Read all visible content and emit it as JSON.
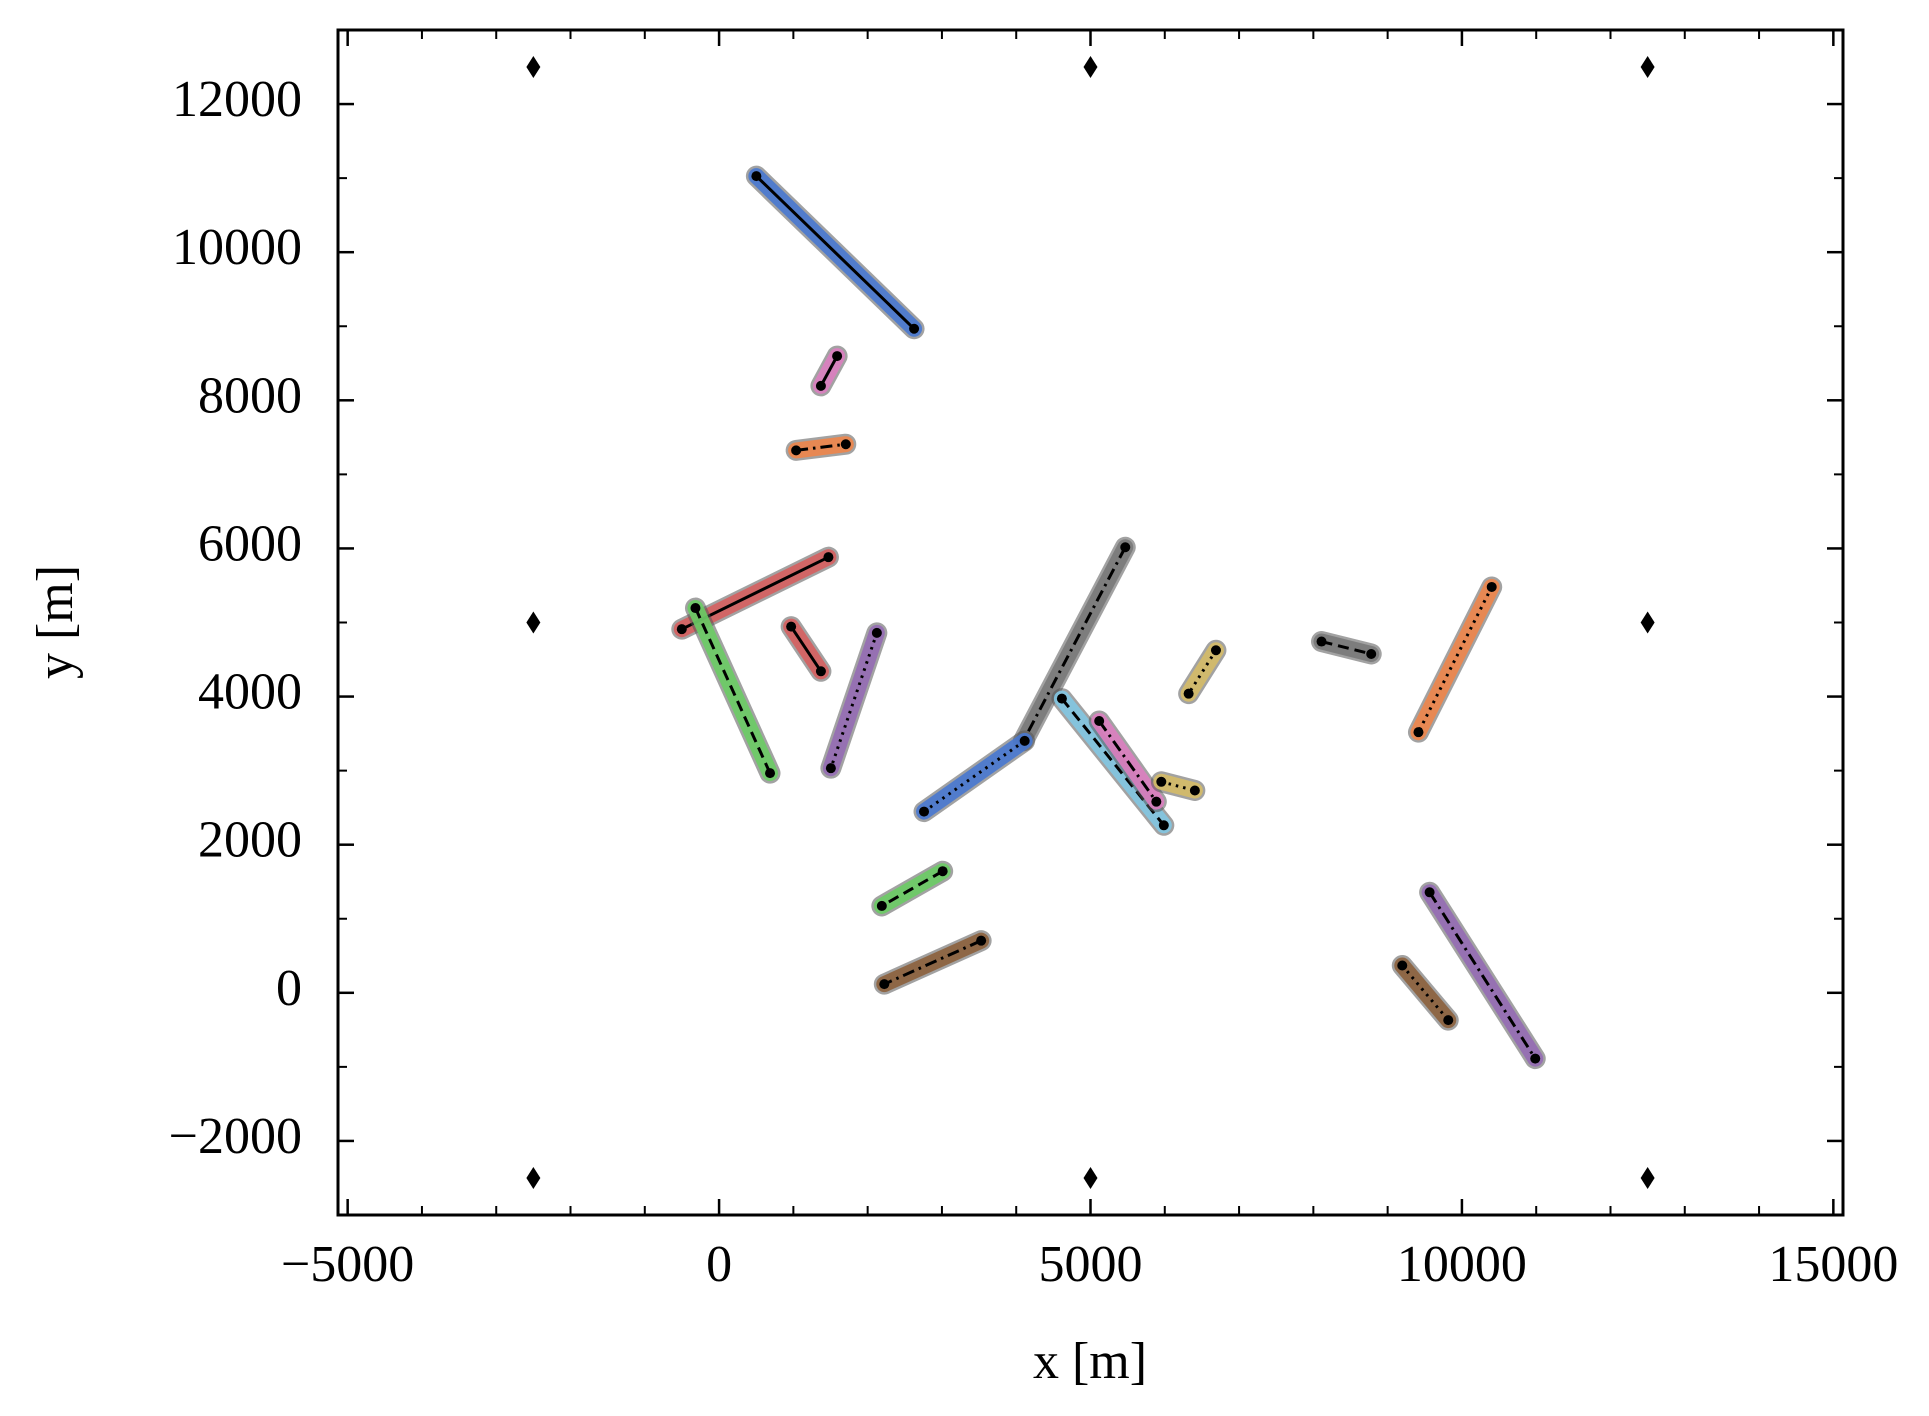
{
  "chart_data": {
    "type": "line",
    "xlabel": "x [m]",
    "ylabel": "y [m]",
    "xlim": [
      -5130,
      15130
    ],
    "ylim": [
      -3000,
      13000
    ],
    "xticks": [
      {
        "value": -5000,
        "label": "−5000"
      },
      0,
      5000,
      10000,
      15000
    ],
    "yticks": [
      {
        "value": -2000,
        "label": "−2000"
      },
      0,
      2000,
      4000,
      6000,
      8000,
      10000,
      12000
    ],
    "grid": false,
    "series": [
      {
        "color": "#4878d0",
        "linestyle": "solid",
        "x": [
          502,
          2625
        ],
        "y": [
          11027,
          8966
        ]
      },
      {
        "color": "#dc7ec0",
        "linestyle": "solid",
        "x": [
          1371,
          1589
        ],
        "y": [
          8195,
          8597
        ]
      },
      {
        "color": "#ee854a",
        "linestyle": "dashdot",
        "x": [
          1037,
          1706
        ],
        "y": [
          7324,
          7407
        ]
      },
      {
        "color": "#d65f5f",
        "linestyle": "solid",
        "x": [
          -502,
          1472
        ],
        "y": [
          4910,
          5882
        ]
      },
      {
        "color": "#6acc64",
        "linestyle": "dashed",
        "x": [
          -318,
          686
        ],
        "y": [
          5195,
          2966
        ]
      },
      {
        "color": "#d65f5f",
        "linestyle": "solid",
        "x": [
          970,
          1371
        ],
        "y": [
          4944,
          4341
        ]
      },
      {
        "color": "#956cb4",
        "linestyle": "dotted",
        "x": [
          2124,
          1505
        ],
        "y": [
          4860,
          3033
        ]
      },
      {
        "color": "#797979",
        "linestyle": "dashdot",
        "x": [
          5468,
          4097
        ],
        "y": [
          6016,
          3402
        ]
      },
      {
        "color": "#4878d0",
        "linestyle": "dotted",
        "x": [
          2759,
          4114
        ],
        "y": [
          2447,
          3402
        ]
      },
      {
        "color": "#82c6e2",
        "linestyle": "dashed",
        "x": [
          4615,
          5987
        ],
        "y": [
          3972,
          2262
        ]
      },
      {
        "color": "#dc7ec0",
        "linestyle": "dashdot",
        "x": [
          5117,
          5886
        ],
        "y": [
          3670,
          2581
        ]
      },
      {
        "color": "#d5bb67",
        "linestyle": "dotted",
        "x": [
          5953,
          6405
        ],
        "y": [
          2849,
          2732
        ]
      },
      {
        "color": "#d5bb67",
        "linestyle": "dotted",
        "x": [
          6689,
          6321
        ],
        "y": [
          4625,
          4039
        ]
      },
      {
        "color": "#797979",
        "linestyle": "dashed",
        "x": [
          8110,
          8779
        ],
        "y": [
          4743,
          4575
        ]
      },
      {
        "color": "#ee854a",
        "linestyle": "dotted",
        "x": [
          10401,
          9415
        ],
        "y": [
          5480,
          3519
        ]
      },
      {
        "color": "#6acc64",
        "linestyle": "dashed",
        "x": [
          3010,
          2191
        ],
        "y": [
          1642,
          1173
        ]
      },
      {
        "color": "#8c613c",
        "linestyle": "dashdot",
        "x": [
          3528,
          2224
        ],
        "y": [
          704,
          117
        ]
      },
      {
        "color": "#956cb4",
        "linestyle": "dashdot",
        "x": [
          9565,
          10987
        ],
        "y": [
          1357,
          -888
        ]
      },
      {
        "color": "#8c613c",
        "linestyle": "dotted",
        "x": [
          9197,
          9816
        ],
        "y": [
          369,
          -369
        ]
      }
    ],
    "points": {
      "marker": "diamond",
      "color": "#000000",
      "x": [
        -2500,
        5000,
        12500,
        -2500,
        12500,
        -2500,
        5000,
        12500
      ],
      "y": [
        12500,
        12500,
        12500,
        5000,
        5000,
        -2500,
        -2500,
        -2500
      ]
    }
  }
}
